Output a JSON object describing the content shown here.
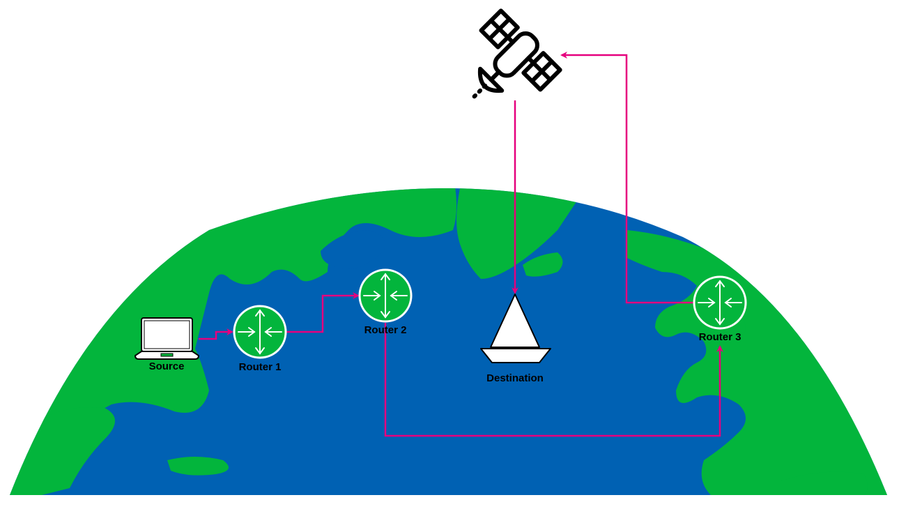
{
  "colors": {
    "ocean": "#0061B3",
    "land": "#03B53C",
    "link": "#E6007E",
    "router": "#ffffff",
    "icon": "#000000"
  },
  "nodes": {
    "source": {
      "label": "Source",
      "icon": "laptop-icon"
    },
    "router1": {
      "label": "Router 1",
      "icon": "router-icon"
    },
    "router2": {
      "label": "Router 2",
      "icon": "router-icon"
    },
    "router3": {
      "label": "Router 3",
      "icon": "router-icon"
    },
    "destination": {
      "label": "Destination",
      "icon": "sailboat-icon"
    },
    "satellite": {
      "icon": "satellite-icon"
    }
  },
  "links": [
    {
      "from": "source",
      "to": "router1"
    },
    {
      "from": "router1",
      "to": "router2"
    },
    {
      "from": "router2",
      "to": "router3"
    },
    {
      "from": "router3",
      "to": "satellite"
    },
    {
      "from": "satellite",
      "to": "destination"
    }
  ]
}
